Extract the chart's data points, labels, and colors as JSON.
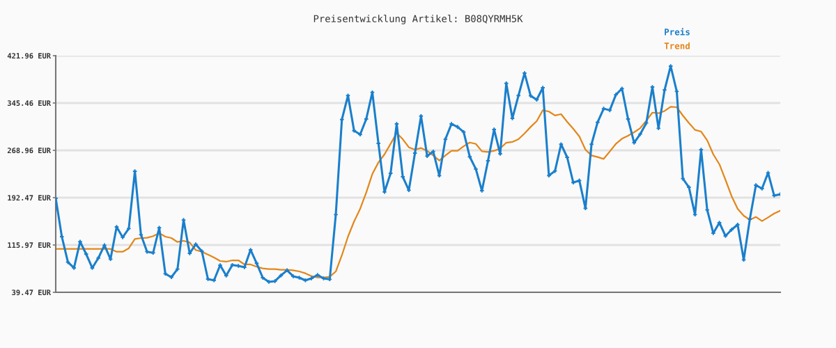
{
  "chart_data": {
    "type": "line",
    "title": "Preisentwicklung Artikel: B08QYRMH5K",
    "categories": [
      null,
      null,
      null,
      null,
      null,
      null,
      null,
      null,
      null,
      null,
      null,
      null,
      null,
      null,
      null,
      null,
      null,
      null,
      null,
      null,
      null,
      null,
      null,
      null,
      null,
      null,
      null,
      null,
      null,
      null,
      null,
      null,
      null,
      null,
      null,
      null,
      null,
      null,
      null,
      null,
      null,
      null,
      null,
      null,
      null,
      null,
      null,
      null,
      null,
      null,
      null,
      null,
      null,
      null,
      null,
      null,
      null,
      null,
      null,
      null,
      null,
      null,
      null,
      null,
      null,
      null,
      null,
      null,
      null,
      null,
      null,
      null,
      null,
      null,
      null,
      null,
      null,
      null,
      null,
      null,
      null,
      null,
      null,
      null,
      null,
      null,
      null,
      null,
      null,
      null,
      null,
      null,
      null,
      null,
      null,
      null,
      null,
      null,
      null,
      null,
      null,
      null,
      null,
      null,
      null,
      null,
      null,
      null,
      null,
      null,
      null,
      null,
      null,
      null,
      null,
      null,
      null,
      null,
      null,
      null
    ],
    "series": [
      {
        "name": "Preis",
        "color": "#1a7fcc",
        "marker": "cross",
        "values": [
          191.3,
          129.5,
          88.2,
          78.9,
          121.3,
          101.3,
          78.9,
          94.9,
          115.6,
          93.1,
          145.2,
          128.4,
          142.6,
          235.2,
          132.5,
          105.1,
          103.3,
          143.8,
          69.5,
          63.9,
          77.0,
          156.4,
          102.5,
          117.1,
          105.8,
          60.8,
          58.9,
          83.3,
          66.5,
          83.7,
          82.2,
          80.0,
          108.1,
          86.4,
          63.1,
          56.4,
          57.5,
          66.8,
          75.1,
          65.4,
          63.1,
          58.9,
          62.0,
          67.6,
          62.0,
          60.5,
          165.1,
          318.8,
          357.5,
          300.8,
          294.5,
          319.6,
          362.7,
          280.2,
          201.8,
          231.8,
          311.7,
          226.2,
          204.5,
          264.5,
          324.4,
          259.6,
          267.1,
          228.1,
          286.9,
          311.7,
          306.8,
          298.6,
          258.6,
          238.8,
          203.7,
          252.1,
          302.7,
          263.3,
          377.2,
          320.7,
          357.5,
          393.8,
          357.1,
          350.8,
          370.2,
          228.1,
          235.6,
          278.8,
          257.7,
          216.9,
          220.2,
          175.3,
          278.8,
          314.3,
          336.3,
          333.8,
          358.8,
          368.8,
          319.6,
          281.3,
          295.2,
          313.2,
          371.3,
          304.6,
          366.5,
          405.1,
          364.2,
          223.2,
          209.3,
          165.1,
          270.1,
          172.6,
          135.1,
          152.0,
          130.6,
          140.7,
          148.9,
          92.0,
          157.6,
          212.7,
          207.1,
          232.6,
          195.8,
          198.0
        ]
      },
      {
        "name": "Trend",
        "color": "#e3861a",
        "marker": "none",
        "values": [
          109.6,
          109.6,
          109.6,
          109.6,
          109.6,
          109.6,
          109.6,
          109.6,
          109.6,
          109.6,
          105.1,
          105.1,
          110.7,
          125.7,
          127.2,
          127.6,
          130.3,
          135.1,
          129.5,
          127.2,
          120.8,
          122.7,
          120.1,
          107.8,
          105.1,
          100.6,
          95.7,
          90.1,
          89.0,
          91.2,
          91.2,
          84.5,
          84.5,
          80.8,
          78.1,
          77.0,
          77.0,
          75.8,
          75.8,
          75.1,
          73.2,
          70.2,
          65.7,
          63.4,
          63.4,
          64.6,
          73.2,
          99.4,
          129.5,
          153.9,
          174.5,
          200.7,
          230.7,
          249.4,
          262.5,
          279.5,
          297.1,
          286.9,
          273.8,
          270.1,
          272.7,
          268.2,
          260.7,
          252.4,
          260.7,
          268.2,
          268.2,
          275.6,
          281.6,
          279.4,
          267.4,
          266.3,
          268.2,
          272.0,
          281.3,
          282.5,
          286.9,
          296.3,
          306.8,
          316.2,
          333.8,
          331.7,
          325.4,
          327.5,
          315.1,
          303.8,
          291.5,
          270.1,
          260.7,
          258.1,
          255.1,
          267.1,
          279.4,
          287.7,
          292.6,
          298.2,
          304.9,
          316.9,
          330.0,
          328.9,
          332.6,
          339.4,
          338.7,
          325.2,
          313.2,
          302.0,
          299.3,
          285.1,
          262.5,
          246.5,
          221.4,
          195.1,
          174.5,
          163.2,
          156.8,
          161.3,
          154.6,
          160.6,
          166.9,
          171.4
        ]
      }
    ],
    "ylim": [
      39.47,
      421.96
    ],
    "yticks": [
      {
        "value": 39.47,
        "label": "39.47 EUR"
      },
      {
        "value": 115.97,
        "label": "115.97 EUR"
      },
      {
        "value": 192.47,
        "label": "192.47 EUR"
      },
      {
        "value": 268.96,
        "label": "268.96 EUR"
      },
      {
        "value": 345.46,
        "label": "345.46 EUR"
      },
      {
        "value": 421.96,
        "label": "421.96 EUR"
      }
    ],
    "grid": "y",
    "legend": "top right",
    "line_style": "solid"
  }
}
